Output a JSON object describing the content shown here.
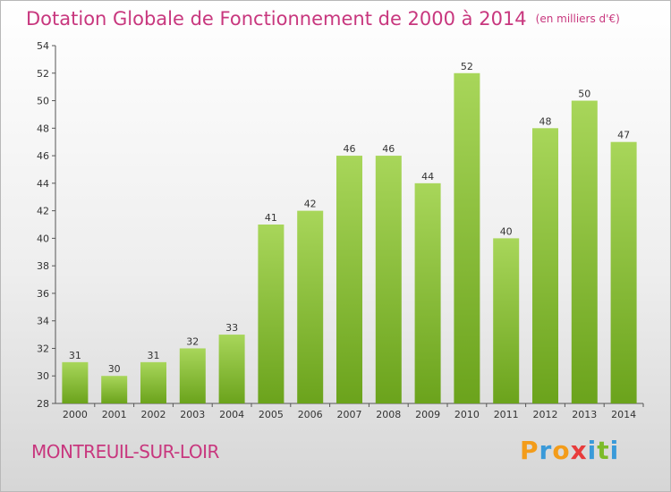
{
  "title": "Dotation Globale de Fonctionnement de 2000 à 2014",
  "subtitle": "(en milliers d'€)",
  "place": "MONTREUIL-SUR-LOIR",
  "logo": {
    "letters": [
      "P",
      "r",
      "o",
      "x",
      "i",
      "t",
      "i"
    ],
    "colors": [
      "#f39c1a",
      "#3a9ad9",
      "#f39c1a",
      "#e83c3c",
      "#3a9ad9",
      "#7cbb29",
      "#3a9ad9"
    ]
  },
  "colors": {
    "title": "#c8377e",
    "bar_light": "#a8d65a",
    "bar_dark": "#6ba31c",
    "text": "#333333"
  },
  "chart_data": {
    "type": "bar",
    "title": "Dotation Globale de Fonctionnement de 2000 à 2014",
    "subtitle": "(en milliers d'€)",
    "categories": [
      "2000",
      "2001",
      "2002",
      "2003",
      "2004",
      "2005",
      "2006",
      "2007",
      "2008",
      "2009",
      "2010",
      "2011",
      "2012",
      "2013",
      "2014"
    ],
    "values": [
      31,
      30,
      31,
      32,
      33,
      41,
      42,
      46,
      46,
      44,
      52,
      40,
      48,
      50,
      47
    ],
    "ylim": [
      28,
      54
    ],
    "yticks": [
      28,
      30,
      32,
      34,
      36,
      38,
      40,
      42,
      44,
      46,
      48,
      50,
      52,
      54
    ],
    "grid": false,
    "legend": "none"
  }
}
